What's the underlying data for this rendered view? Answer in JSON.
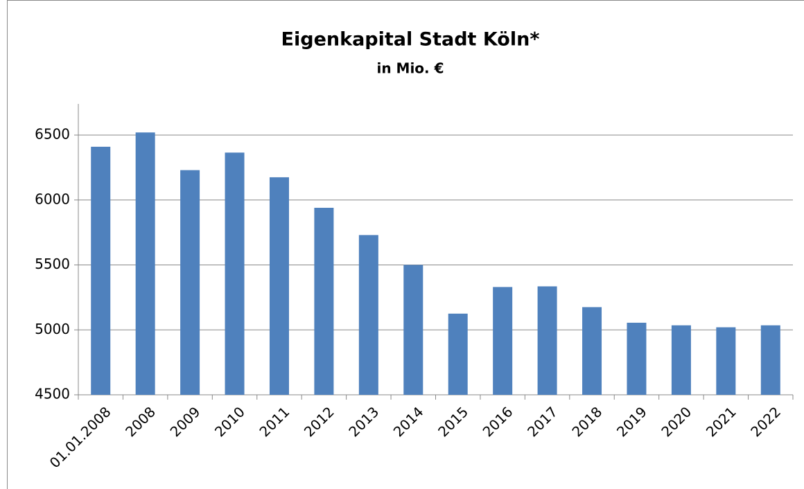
{
  "chart_data": {
    "type": "bar",
    "title": "Eigenkapital Stadt Köln*",
    "subtitle": "in Mio. €",
    "categories": [
      "01.01.2008",
      "2008",
      "2009",
      "2010",
      "2011",
      "2012",
      "2013",
      "2014",
      "2015",
      "2016",
      "2017",
      "2018",
      "2019",
      "2020",
      "2021",
      "2022"
    ],
    "values": [
      6410,
      6520,
      6230,
      6365,
      6175,
      5940,
      5730,
      5500,
      5125,
      5330,
      5335,
      5175,
      5055,
      5035,
      5020,
      5035
    ],
    "color": "#4f81bd",
    "ylim": [
      4500,
      6740
    ],
    "yticks": [
      4500,
      5000,
      5500,
      6000,
      6500
    ],
    "grid": true
  }
}
